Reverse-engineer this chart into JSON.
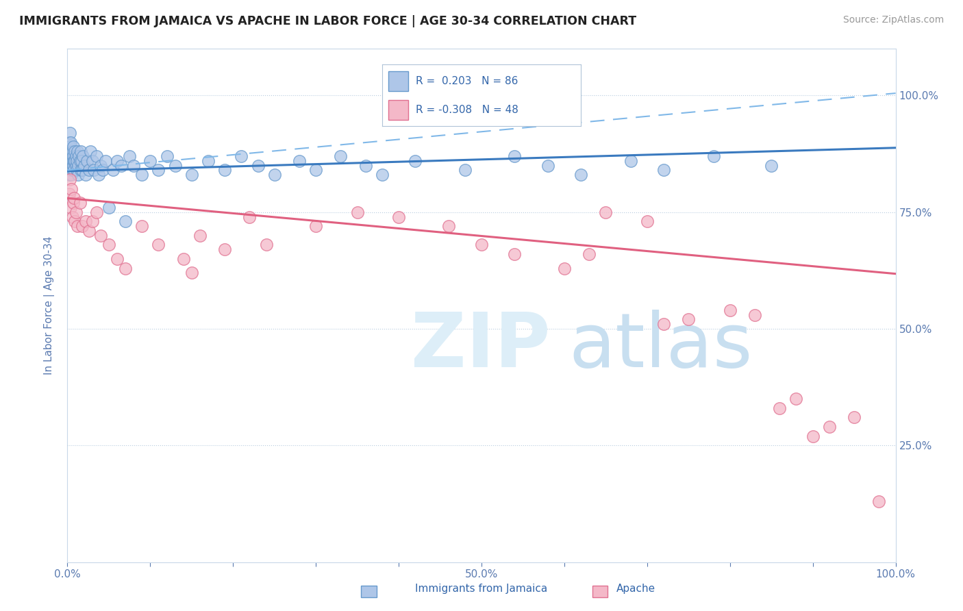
{
  "title": "IMMIGRANTS FROM JAMAICA VS APACHE IN LABOR FORCE | AGE 30-34 CORRELATION CHART",
  "source": "Source: ZipAtlas.com",
  "ylabel": "In Labor Force | Age 30-34",
  "xlim": [
    0.0,
    1.0
  ],
  "ylim": [
    0.0,
    1.1
  ],
  "jamaica_color": "#aec6e8",
  "jamaica_edge": "#6699cc",
  "apache_color": "#f4b8c8",
  "apache_edge": "#e07090",
  "trend_jamaica_color": "#3a7abf",
  "trend_apache_color": "#e06080",
  "dash_color": "#80b8e8",
  "background_color": "#ffffff",
  "R_jamaica": 0.203,
  "N_jamaica": 86,
  "R_apache": -0.308,
  "N_apache": 48,
  "trend_jamaica": [
    0.838,
    0.888
  ],
  "trend_apache": [
    0.78,
    0.618
  ],
  "dash_line": [
    0.84,
    1.005
  ],
  "jamaica_x": [
    0.001,
    0.001,
    0.001,
    0.002,
    0.002,
    0.002,
    0.002,
    0.003,
    0.003,
    0.003,
    0.003,
    0.003,
    0.004,
    0.004,
    0.004,
    0.005,
    0.005,
    0.005,
    0.006,
    0.006,
    0.006,
    0.007,
    0.007,
    0.007,
    0.008,
    0.008,
    0.009,
    0.009,
    0.01,
    0.01,
    0.011,
    0.011,
    0.012,
    0.013,
    0.013,
    0.014,
    0.015,
    0.016,
    0.016,
    0.017,
    0.018,
    0.019,
    0.02,
    0.022,
    0.024,
    0.026,
    0.028,
    0.03,
    0.032,
    0.035,
    0.038,
    0.04,
    0.043,
    0.046,
    0.05,
    0.055,
    0.06,
    0.065,
    0.07,
    0.075,
    0.08,
    0.09,
    0.1,
    0.11,
    0.12,
    0.13,
    0.15,
    0.17,
    0.19,
    0.21,
    0.23,
    0.25,
    0.28,
    0.3,
    0.33,
    0.36,
    0.38,
    0.42,
    0.48,
    0.54,
    0.58,
    0.62,
    0.68,
    0.72,
    0.78,
    0.85
  ],
  "jamaica_y": [
    0.86,
    0.84,
    0.88,
    0.9,
    0.87,
    0.85,
    0.83,
    0.89,
    0.87,
    0.85,
    0.92,
    0.88,
    0.86,
    0.84,
    0.9,
    0.87,
    0.85,
    0.83,
    0.88,
    0.86,
    0.84,
    0.89,
    0.87,
    0.85,
    0.86,
    0.84,
    0.88,
    0.86,
    0.87,
    0.85,
    0.84,
    0.86,
    0.88,
    0.85,
    0.83,
    0.87,
    0.86,
    0.84,
    0.88,
    0.86,
    0.84,
    0.87,
    0.85,
    0.83,
    0.86,
    0.84,
    0.88,
    0.86,
    0.84,
    0.87,
    0.83,
    0.85,
    0.84,
    0.86,
    0.76,
    0.84,
    0.86,
    0.85,
    0.73,
    0.87,
    0.85,
    0.83,
    0.86,
    0.84,
    0.87,
    0.85,
    0.83,
    0.86,
    0.84,
    0.87,
    0.85,
    0.83,
    0.86,
    0.84,
    0.87,
    0.85,
    0.83,
    0.86,
    0.84,
    0.87,
    0.85,
    0.83,
    0.86,
    0.84,
    0.87,
    0.85
  ],
  "apache_x": [
    0.002,
    0.003,
    0.004,
    0.005,
    0.006,
    0.007,
    0.008,
    0.009,
    0.01,
    0.012,
    0.015,
    0.018,
    0.022,
    0.026,
    0.03,
    0.035,
    0.04,
    0.05,
    0.06,
    0.07,
    0.09,
    0.11,
    0.14,
    0.15,
    0.16,
    0.19,
    0.22,
    0.24,
    0.3,
    0.35,
    0.4,
    0.46,
    0.5,
    0.54,
    0.6,
    0.63,
    0.65,
    0.7,
    0.72,
    0.75,
    0.8,
    0.83,
    0.86,
    0.88,
    0.9,
    0.92,
    0.95,
    0.98
  ],
  "apache_y": [
    0.79,
    0.82,
    0.76,
    0.8,
    0.74,
    0.77,
    0.78,
    0.73,
    0.75,
    0.72,
    0.77,
    0.72,
    0.73,
    0.71,
    0.73,
    0.75,
    0.7,
    0.68,
    0.65,
    0.63,
    0.72,
    0.68,
    0.65,
    0.62,
    0.7,
    0.67,
    0.74,
    0.68,
    0.72,
    0.75,
    0.74,
    0.72,
    0.68,
    0.66,
    0.63,
    0.66,
    0.75,
    0.73,
    0.51,
    0.52,
    0.54,
    0.53,
    0.33,
    0.35,
    0.27,
    0.29,
    0.31,
    0.13
  ]
}
